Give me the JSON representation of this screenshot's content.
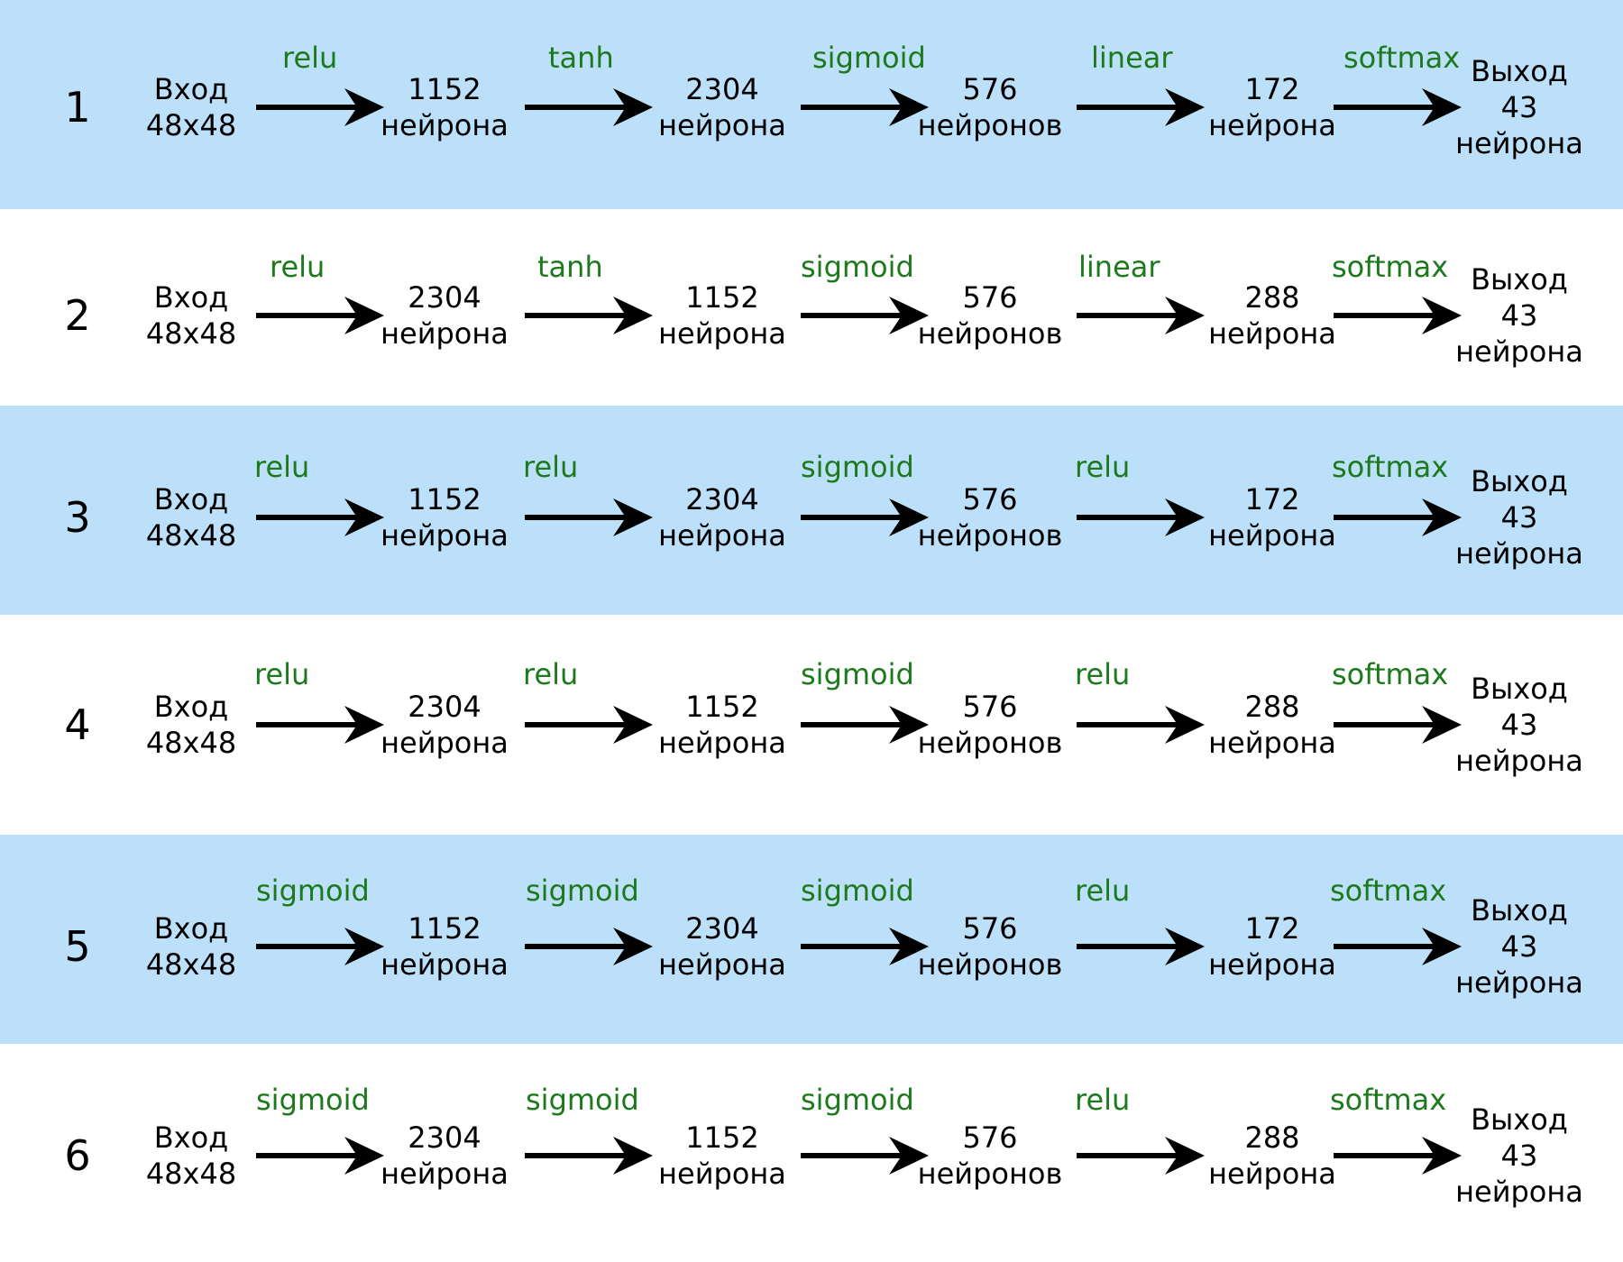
{
  "colors": {
    "band": "#bde0fa",
    "activation": "#1c7a1c",
    "arrow": "#000000"
  },
  "rows": [
    {
      "number": "1",
      "input": {
        "line1": "Вход",
        "line2": "48x48"
      },
      "activations": [
        "relu",
        "tanh",
        "sigmoid",
        "linear",
        "softmax"
      ],
      "hidden": [
        {
          "count": "1152",
          "unit": "нейрона"
        },
        {
          "count": "2304",
          "unit": "нейрона"
        },
        {
          "count": "576",
          "unit": "нейронов"
        },
        {
          "count": "172",
          "unit": "нейрона"
        }
      ],
      "output": {
        "line1": "Выход",
        "line2": "43",
        "line3": "нейрона"
      }
    },
    {
      "number": "2",
      "input": {
        "line1": "Вход",
        "line2": "48x48"
      },
      "activations": [
        "relu",
        "tanh",
        "sigmoid",
        "linear",
        "softmax"
      ],
      "hidden": [
        {
          "count": "2304",
          "unit": "нейрона"
        },
        {
          "count": "1152",
          "unit": "нейрона"
        },
        {
          "count": "576",
          "unit": "нейронов"
        },
        {
          "count": "288",
          "unit": "нейрона"
        }
      ],
      "output": {
        "line1": "Выход",
        "line2": "43",
        "line3": "нейрона"
      }
    },
    {
      "number": "3",
      "input": {
        "line1": "Вход",
        "line2": "48x48"
      },
      "activations": [
        "relu",
        "relu",
        "sigmoid",
        "relu",
        "softmax"
      ],
      "hidden": [
        {
          "count": "1152",
          "unit": "нейрона"
        },
        {
          "count": "2304",
          "unit": "нейрона"
        },
        {
          "count": "576",
          "unit": "нейронов"
        },
        {
          "count": "172",
          "unit": "нейрона"
        }
      ],
      "output": {
        "line1": "Выход",
        "line2": "43",
        "line3": "нейрона"
      }
    },
    {
      "number": "4",
      "input": {
        "line1": "Вход",
        "line2": "48x48"
      },
      "activations": [
        "relu",
        "relu",
        "sigmoid",
        "relu",
        "softmax"
      ],
      "hidden": [
        {
          "count": "2304",
          "unit": "нейрона"
        },
        {
          "count": "1152",
          "unit": "нейрона"
        },
        {
          "count": "576",
          "unit": "нейронов"
        },
        {
          "count": "288",
          "unit": "нейрона"
        }
      ],
      "output": {
        "line1": "Выход",
        "line2": "43",
        "line3": "нейрона"
      }
    },
    {
      "number": "5",
      "input": {
        "line1": "Вход",
        "line2": "48x48"
      },
      "activations": [
        "sigmoid",
        "sigmoid",
        "sigmoid",
        "relu",
        "softmax"
      ],
      "hidden": [
        {
          "count": "1152",
          "unit": "нейрона"
        },
        {
          "count": "2304",
          "unit": "нейрона"
        },
        {
          "count": "576",
          "unit": "нейронов"
        },
        {
          "count": "172",
          "unit": "нейрона"
        }
      ],
      "output": {
        "line1": "Выход",
        "line2": "43",
        "line3": "нейрона"
      }
    },
    {
      "number": "6",
      "input": {
        "line1": "Вход",
        "line2": "48x48"
      },
      "activations": [
        "sigmoid",
        "sigmoid",
        "sigmoid",
        "relu",
        "softmax"
      ],
      "hidden": [
        {
          "count": "2304",
          "unit": "нейрона"
        },
        {
          "count": "1152",
          "unit": "нейрона"
        },
        {
          "count": "576",
          "unit": "нейронов"
        },
        {
          "count": "288",
          "unit": "нейрона"
        }
      ],
      "output": {
        "line1": "Выход",
        "line2": "43",
        "line3": "нейрона"
      }
    }
  ]
}
